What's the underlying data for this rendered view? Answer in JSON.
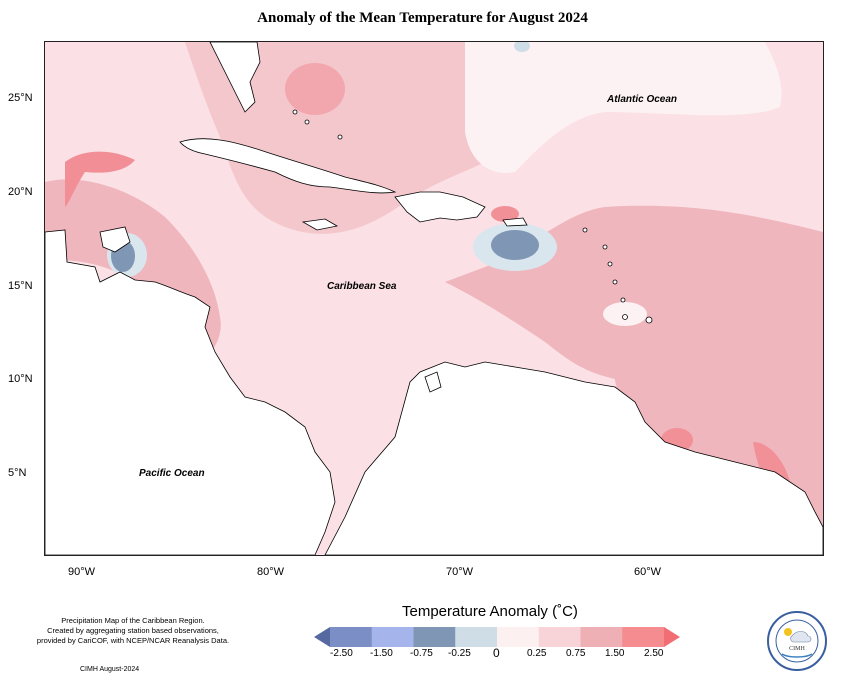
{
  "title": "Anomaly of the Mean Temperature for August 2024",
  "map": {
    "latitude_labels": [
      "25°N",
      "20°N",
      "15°N",
      "10°N",
      "5°N"
    ],
    "longitude_labels": [
      "90°W",
      "80°W",
      "70°W",
      "60°W"
    ],
    "place_labels": {
      "atlantic": "Atlantic Ocean",
      "caribbean": "Caribbean Sea",
      "pacific": "Pacific Ocean"
    }
  },
  "legend": {
    "title": "Temperature Anomaly (˚C)",
    "ticks": [
      "-2.50",
      "-1.50",
      "-0.75",
      "-0.25",
      "0",
      "0.25",
      "0.75",
      "1.50",
      "2.50"
    ],
    "colors": [
      "#5669a0",
      "#7b8ec6",
      "#a5b4ea",
      "#7f97b4",
      "#cfdde6",
      "#fdf0f1",
      "#f8d3d8",
      "#efb0b5",
      "#f48c90",
      "#f26d74"
    ]
  },
  "credits": {
    "line1": "Precipitation Map of the Caribbean Region.",
    "line2": "Created by aggregating station based observations,",
    "line3": "provided by CariCOF, with NCEP/NCAR Reanalysis Data.",
    "date": "CIMH August-2024"
  },
  "logo": {
    "name": "CIMH",
    "ring_text": "Caribbean Institute for Meteorology and Hydrology"
  }
}
